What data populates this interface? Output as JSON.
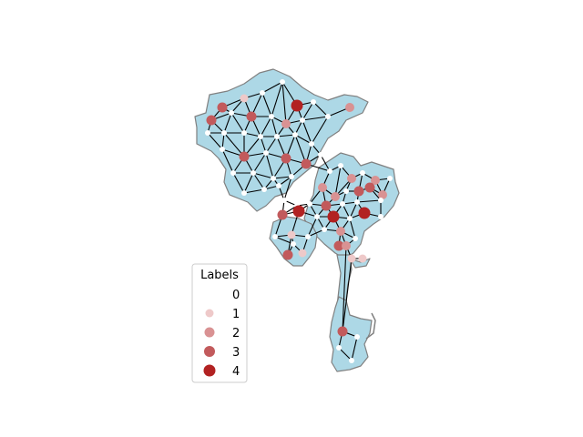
{
  "legend": {
    "title": "Labels",
    "entries": [
      {
        "label": "0",
        "color": "#ffffff"
      },
      {
        "label": "1",
        "color": "#eec9c9"
      },
      {
        "label": "2",
        "color": "#d99293"
      },
      {
        "label": "3",
        "color": "#c25a5c"
      },
      {
        "label": "4",
        "color": "#b22222"
      }
    ]
  },
  "colors": {
    "region_fill": "#add8e6",
    "region_stroke": "#808080",
    "edge": "#000000"
  }
}
